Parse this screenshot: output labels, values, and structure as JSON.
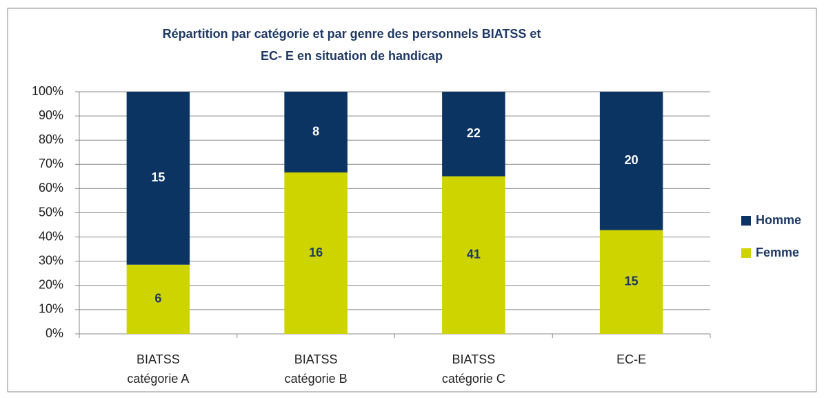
{
  "chart_data": {
    "type": "bar",
    "stacking": "percent",
    "title": [
      "Répartition par catégorie et par genre des personnels BIATSS et",
      "EC- E en situation de handicap"
    ],
    "categories": [
      [
        "BIATSS",
        "catégorie A"
      ],
      [
        "BIATSS",
        "catégorie B"
      ],
      [
        "BIATSS",
        "catégorie C"
      ],
      [
        "EC-E"
      ]
    ],
    "series": [
      {
        "name": "Femme",
        "color": "#cdd400",
        "values": [
          6,
          16,
          41,
          15
        ]
      },
      {
        "name": "Homme",
        "color": "#0b3463",
        "values": [
          15,
          8,
          22,
          20
        ]
      }
    ],
    "ylim": [
      0,
      100
    ],
    "yticks": [
      {
        "value": 0,
        "label": "0%"
      },
      {
        "value": 10,
        "label": "10%"
      },
      {
        "value": 20,
        "label": "20%"
      },
      {
        "value": 30,
        "label": "30%"
      },
      {
        "value": 40,
        "label": "40%"
      },
      {
        "value": 50,
        "label": "50%"
      },
      {
        "value": 60,
        "label": "60%"
      },
      {
        "value": 70,
        "label": "70%"
      },
      {
        "value": 80,
        "label": "80%"
      },
      {
        "value": 90,
        "label": "90%"
      },
      {
        "value": 100,
        "label": "100%"
      }
    ],
    "grid": true,
    "legend": "right"
  }
}
